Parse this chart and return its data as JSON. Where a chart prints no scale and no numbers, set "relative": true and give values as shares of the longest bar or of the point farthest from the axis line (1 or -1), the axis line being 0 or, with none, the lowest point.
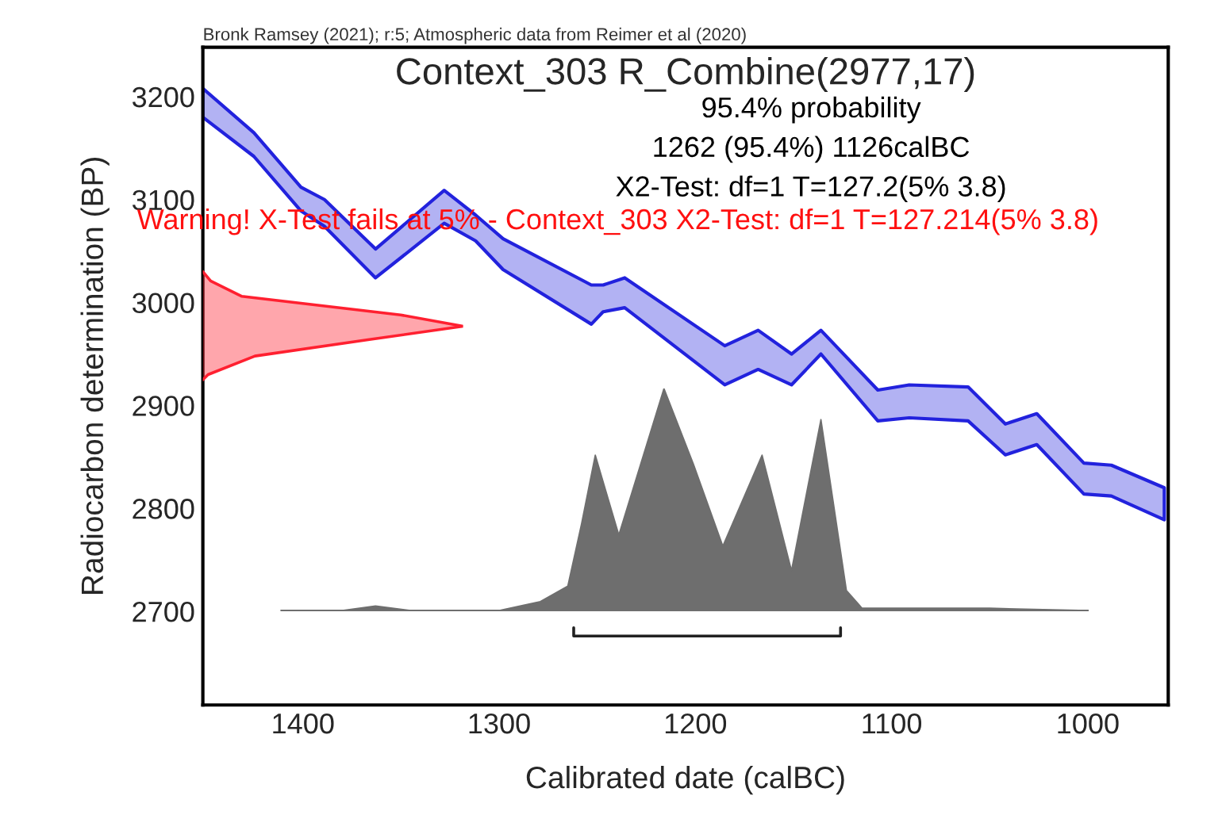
{
  "chart_data": [
    {
      "type": "line",
      "title": "Context_303 R_Combine(2977,17)",
      "xlabel": "Calibrated date (calBC)",
      "ylabel": "Radiocarbon determination (BP)",
      "annotations": [
        "Bronk Ramsey (2021); r:5; Atmospheric data from Reimer et al (2020)",
        "95.4% probability",
        "1262 (95.4%) 1126calBC",
        "X2-Test: df=1 T=127.2(5% 3.8)",
        "Warning! X-Test fails at 5% - Context_303 X2-Test: df=1 T=127.214(5% 3.8)"
      ],
      "xlim": [
        1451,
        959
      ],
      "ylim": [
        2609,
        3248
      ],
      "xticks": [
        1400,
        1300,
        1200,
        1100,
        1000
      ],
      "yticks": [
        2700,
        2800,
        2900,
        3000,
        3100,
        3200
      ],
      "legend": false,
      "series": [
        {
          "color": "#2222dd",
          "x": [
            1451,
            1425,
            1401,
            1389,
            1363,
            1328,
            1312,
            1298,
            1253,
            1247,
            1236,
            1185,
            1168,
            1151,
            1136,
            1107,
            1091,
            1061,
            1042,
            1026,
            1002,
            988,
            961
          ],
          "lower": [
            3180,
            3142,
            3089,
            3074,
            3024,
            3077,
            3060,
            3032,
            2979,
            2991,
            2995,
            2920,
            2935,
            2920,
            2950,
            2885,
            2888,
            2885,
            2852,
            2862,
            2814,
            2812,
            2789
          ],
          "values": [
            null,
            null,
            null,
            null,
            null,
            null,
            null,
            null,
            null,
            null,
            null,
            null,
            null,
            null,
            null,
            null,
            null,
            null,
            null,
            null,
            null,
            null,
            null
          ],
          "upper": [
            3208,
            3165,
            3112,
            3100,
            3052,
            3109,
            3085,
            3062,
            3017,
            3017,
            3024,
            2958,
            2973,
            2950,
            2973,
            2915,
            2920,
            2918,
            2882,
            2892,
            2844,
            2842,
            2820
          ]
        },
        {
          "color": "#222222",
          "x": [
            1262,
            1262,
            1126,
            1126
          ],
          "values": [
            2684,
            2676,
            2676,
            2684
          ]
        }
      ]
    },
    {
      "type": "area",
      "relative": true,
      "xlim": [
        1451,
        959
      ],
      "tick_labels": false,
      "series": [
        {
          "color": "#6e6e6e",
          "x": [
            1411,
            1380,
            1363,
            1345,
            1300,
            1279,
            1265,
            1258,
            1251,
            1239,
            1216,
            1201,
            1186,
            1166,
            1151,
            1136,
            1123,
            1115,
            1050,
            1000
          ],
          "values": [
            0,
            0,
            0.02,
            0,
            0,
            0.04,
            0.11,
            0.39,
            0.7,
            0.34,
            1.0,
            0.66,
            0.29,
            0.7,
            0.18,
            0.86,
            0.09,
            0.01,
            0.01,
            0
          ]
        }
      ]
    },
    {
      "type": "area",
      "relative": true,
      "orientation": "horizontal",
      "ylim": [
        2609,
        3248
      ],
      "tick_labels": false,
      "series": [
        {
          "color": "#ff2030",
          "x": [
            2925,
            2930,
            2948,
            2964,
            2977,
            2988,
            3006,
            3021,
            3030
          ],
          "values": [
            0,
            0.02,
            0.2,
            0.64,
            1.0,
            0.76,
            0.15,
            0.03,
            0
          ]
        }
      ]
    }
  ]
}
